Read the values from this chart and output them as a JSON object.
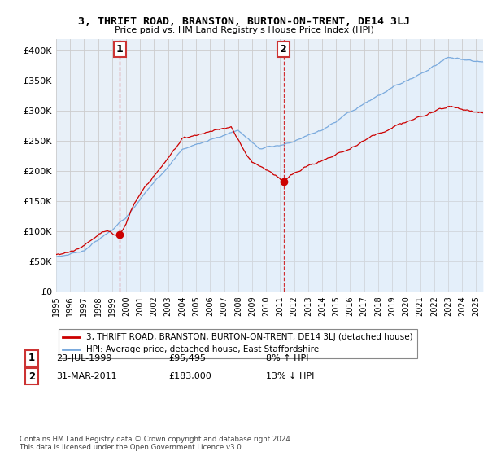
{
  "title": "3, THRIFT ROAD, BRANSTON, BURTON-ON-TRENT, DE14 3LJ",
  "subtitle": "Price paid vs. HM Land Registry's House Price Index (HPI)",
  "legend_label_red": "3, THRIFT ROAD, BRANSTON, BURTON-ON-TRENT, DE14 3LJ (detached house)",
  "legend_label_blue": "HPI: Average price, detached house, East Staffordshire",
  "annotation1_date": "23-JUL-1999",
  "annotation1_price": "£95,495",
  "annotation1_hpi": "8% ↑ HPI",
  "annotation2_date": "31-MAR-2011",
  "annotation2_price": "£183,000",
  "annotation2_hpi": "13% ↓ HPI",
  "footnote": "Contains HM Land Registry data © Crown copyright and database right 2024.\nThis data is licensed under the Open Government Licence v3.0.",
  "ylim": [
    0,
    420000
  ],
  "yticks": [
    0,
    50000,
    100000,
    150000,
    200000,
    250000,
    300000,
    350000,
    400000
  ],
  "red_color": "#cc0000",
  "blue_color": "#7aaadd",
  "blue_fill": "#ddeeff",
  "bg_color": "#ffffff",
  "grid_color": "#cccccc",
  "sale1_x": 1999.55,
  "sale1_y": 95495,
  "sale2_x": 2011.25,
  "sale2_y": 183000,
  "xlim_start": 1995.0,
  "xlim_end": 2025.5
}
